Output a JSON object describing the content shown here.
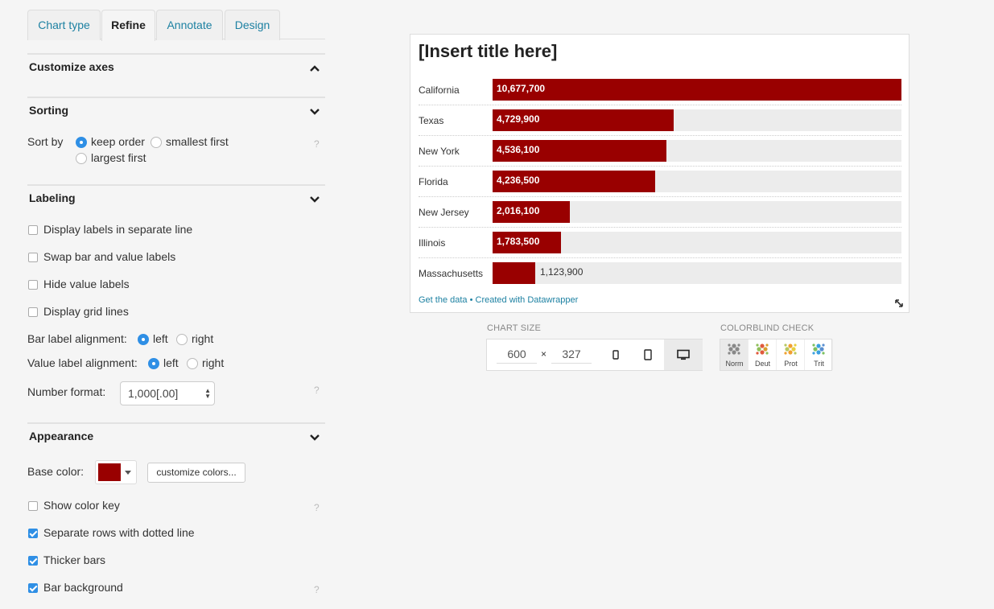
{
  "tabs": [
    {
      "label": "Chart type"
    },
    {
      "label": "Refine"
    },
    {
      "label": "Annotate"
    },
    {
      "label": "Design"
    }
  ],
  "active_tab": "Refine",
  "sections": {
    "customize_axes": {
      "title": "Customize axes"
    },
    "sorting": {
      "title": "Sorting",
      "sort_by_label": "Sort by",
      "options": [
        "keep order",
        "smallest first",
        "largest first"
      ],
      "selected": "keep order"
    },
    "labeling": {
      "title": "Labeling",
      "checkboxes": [
        {
          "label": "Display labels in separate line",
          "checked": false
        },
        {
          "label": "Swap bar and value labels",
          "checked": false
        },
        {
          "label": "Hide value labels",
          "checked": false
        },
        {
          "label": "Display grid lines",
          "checked": false
        }
      ],
      "bar_label_alignment": {
        "label": "Bar label alignment:",
        "options": [
          "left",
          "right"
        ],
        "selected": "left"
      },
      "value_label_alignment": {
        "label": "Value label alignment:",
        "options": [
          "left",
          "right"
        ],
        "selected": "left"
      },
      "number_format": {
        "label": "Number format:",
        "value": "1,000[.00]"
      }
    },
    "appearance": {
      "title": "Appearance",
      "base_color_label": "Base color:",
      "base_color": "#990000",
      "customize_button": "customize colors...",
      "checkboxes": [
        {
          "label": "Show color key",
          "checked": false
        },
        {
          "label": "Separate rows with dotted line",
          "checked": true
        },
        {
          "label": "Thicker bars",
          "checked": true
        },
        {
          "label": "Bar background",
          "checked": true
        }
      ]
    }
  },
  "help_mark": "?",
  "chart": {
    "title": "[Insert title here]",
    "footer": "Get the data • Created with Datawrapper",
    "bar_color": "#990000"
  },
  "chart_data": {
    "type": "bar",
    "orientation": "horizontal",
    "title": "[Insert title here]",
    "categories": [
      "California",
      "Texas",
      "New York",
      "Florida",
      "New Jersey",
      "Illinois",
      "Massachusetts"
    ],
    "values": [
      10677700,
      4729900,
      4536100,
      4236500,
      2016100,
      1783500,
      1123900
    ],
    "value_labels": [
      "10,677,700",
      "4,729,900",
      "4,536,100",
      "4,236,500",
      "2,016,100",
      "1,783,500",
      "1,123,900"
    ],
    "xlim": [
      0,
      10677700
    ],
    "bar_background": true,
    "row_separators": "dotted"
  },
  "chart_size": {
    "label": "CHART SIZE",
    "width": "600",
    "height": "327",
    "x_sign": "×"
  },
  "colorblind": {
    "label": "COLORBLIND CHECK",
    "modes": [
      {
        "label": "Norm",
        "colors": [
          "#888888",
          "#888888",
          "#888888"
        ]
      },
      {
        "label": "Deut",
        "colors": [
          "#e05a3c",
          "#8fbf5a",
          "#d8a030"
        ]
      },
      {
        "label": "Prot",
        "colors": [
          "#f0a030",
          "#b8c860",
          "#e8d040"
        ]
      },
      {
        "label": "Trit",
        "colors": [
          "#3aa0e0",
          "#7cc060",
          "#5a8fd0"
        ]
      }
    ]
  }
}
